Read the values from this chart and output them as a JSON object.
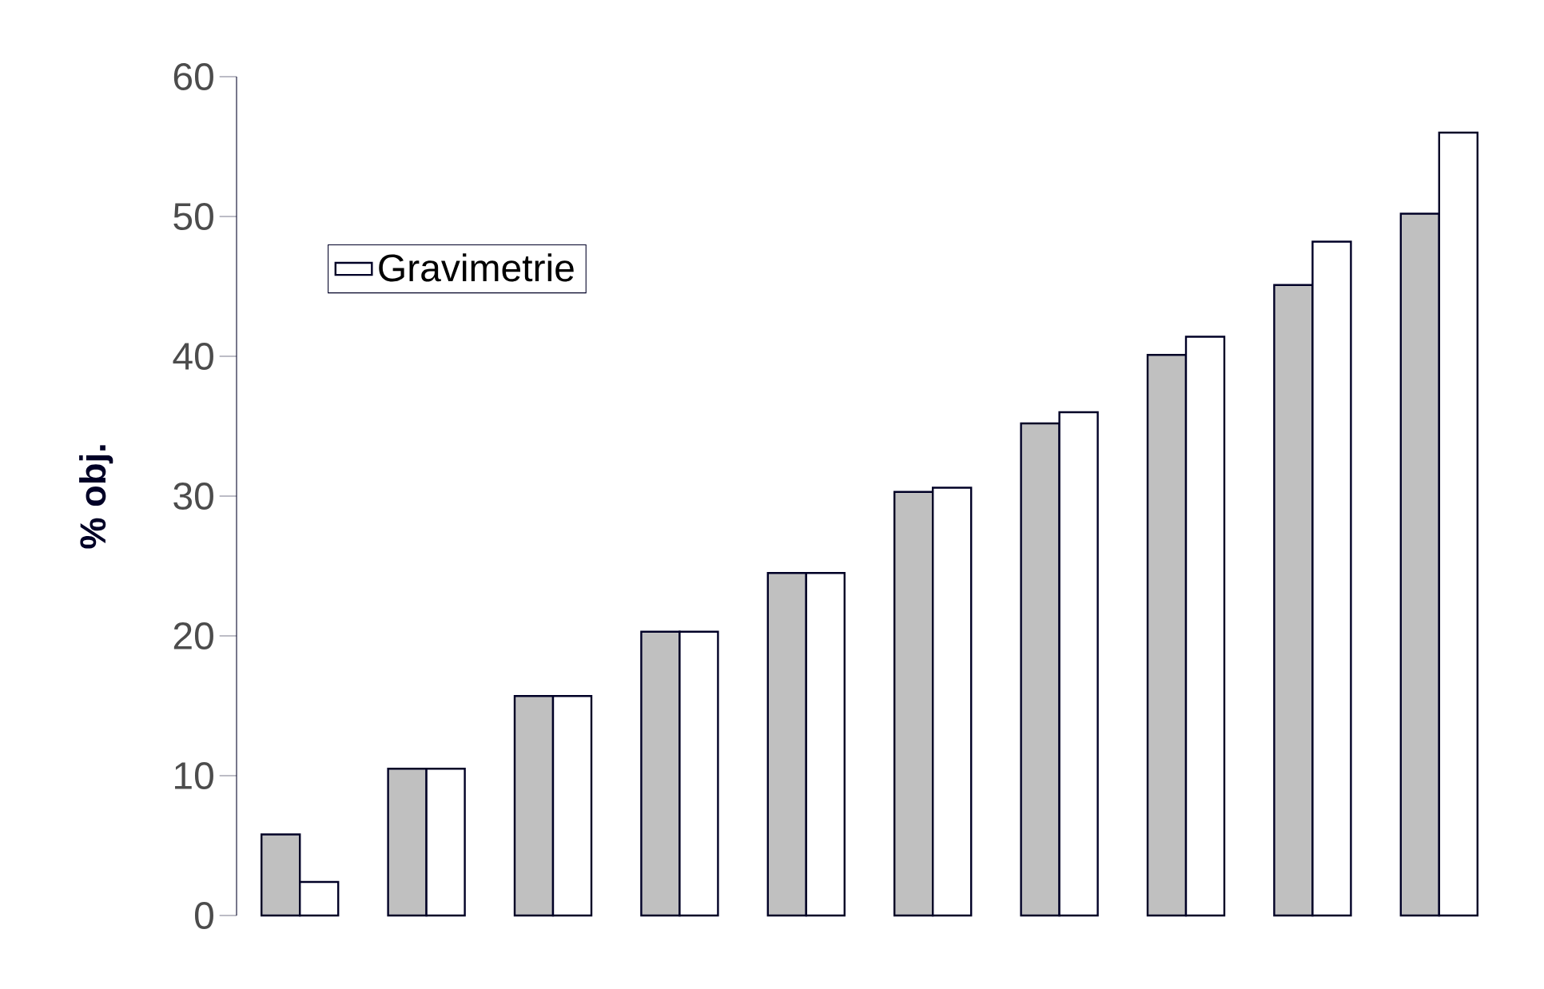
{
  "chart_data": {
    "type": "bar",
    "ylabel": "% obj.",
    "categories": [
      null,
      null,
      null,
      null,
      null,
      null,
      null,
      null,
      null,
      null
    ],
    "series": [
      {
        "color": "#c0c0c0",
        "values": [
          5.8,
          10.5,
          15.7,
          20.3,
          24.5,
          30.3,
          35.2,
          40.1,
          45.1,
          50.2
        ]
      },
      {
        "name": "Gravimetrie",
        "color": "#ffffff",
        "values": [
          2.4,
          10.5,
          15.7,
          20.3,
          24.5,
          30.6,
          36.0,
          41.4,
          48.2,
          56.0
        ]
      }
    ],
    "ylim": [
      0,
      60
    ],
    "yticks": [
      0,
      10,
      20,
      30,
      40,
      50,
      60
    ],
    "grid": false,
    "legend": "top left"
  }
}
